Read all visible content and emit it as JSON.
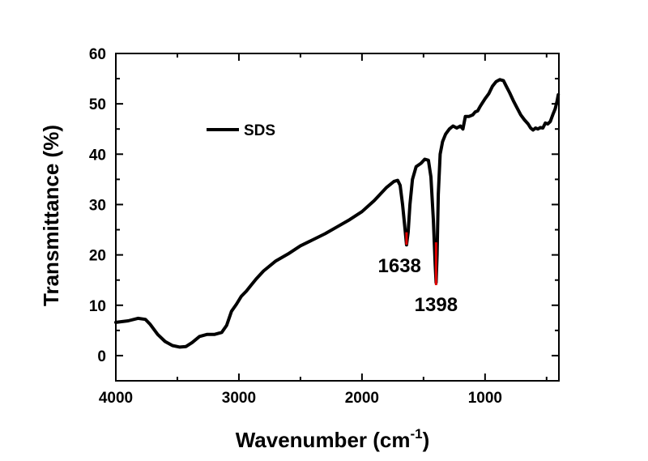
{
  "chart_data": {
    "type": "line",
    "xlabel": "Wavenumber (cm",
    "xlabel_sup": "-1",
    "xlabel_end": ")",
    "ylabel": "Transmittance (%)",
    "xlim": [
      4000,
      400
    ],
    "ylim": [
      -5,
      60
    ],
    "x_reversed": true,
    "xticks": [
      4000,
      3000,
      2000,
      1000
    ],
    "yticks": [
      0,
      10,
      20,
      30,
      40,
      50,
      60
    ],
    "legend_position": "top-left",
    "series": [
      {
        "name": "SDS",
        "color": "#000000",
        "points": [
          [
            4000,
            6.6
          ],
          [
            3900,
            6.9
          ],
          [
            3820,
            7.4
          ],
          [
            3760,
            7.2
          ],
          [
            3720,
            6.2
          ],
          [
            3660,
            4.2
          ],
          [
            3600,
            2.8
          ],
          [
            3540,
            2.0
          ],
          [
            3480,
            1.7
          ],
          [
            3430,
            1.8
          ],
          [
            3380,
            2.6
          ],
          [
            3320,
            3.8
          ],
          [
            3260,
            4.2
          ],
          [
            3200,
            4.2
          ],
          [
            3140,
            4.6
          ],
          [
            3100,
            6.0
          ],
          [
            3060,
            8.8
          ],
          [
            3020,
            10.2
          ],
          [
            2980,
            11.8
          ],
          [
            2940,
            12.8
          ],
          [
            2900,
            14.0
          ],
          [
            2860,
            15.2
          ],
          [
            2800,
            16.8
          ],
          [
            2700,
            18.8
          ],
          [
            2600,
            20.2
          ],
          [
            2500,
            21.8
          ],
          [
            2400,
            23.0
          ],
          [
            2300,
            24.2
          ],
          [
            2200,
            25.6
          ],
          [
            2100,
            27.0
          ],
          [
            2000,
            28.6
          ],
          [
            1900,
            30.8
          ],
          [
            1800,
            33.4
          ],
          [
            1740,
            34.6
          ],
          [
            1710,
            34.8
          ],
          [
            1690,
            33.8
          ],
          [
            1670,
            30.0
          ],
          [
            1650,
            25.0
          ],
          [
            1638,
            22.0
          ],
          [
            1625,
            24.5
          ],
          [
            1610,
            30.0
          ],
          [
            1590,
            35.0
          ],
          [
            1560,
            37.5
          ],
          [
            1520,
            38.2
          ],
          [
            1490,
            39.0
          ],
          [
            1460,
            38.8
          ],
          [
            1440,
            35.5
          ],
          [
            1420,
            27.0
          ],
          [
            1405,
            18.0
          ],
          [
            1398,
            14.5
          ],
          [
            1390,
            20.0
          ],
          [
            1380,
            32.0
          ],
          [
            1365,
            40.0
          ],
          [
            1345,
            42.5
          ],
          [
            1320,
            44.0
          ],
          [
            1290,
            45.0
          ],
          [
            1260,
            45.6
          ],
          [
            1230,
            45.2
          ],
          [
            1200,
            45.6
          ],
          [
            1180,
            45.0
          ],
          [
            1160,
            47.5
          ],
          [
            1130,
            47.5
          ],
          [
            1100,
            47.8
          ],
          [
            1080,
            48.4
          ],
          [
            1060,
            48.6
          ],
          [
            1040,
            49.5
          ],
          [
            1000,
            51.0
          ],
          [
            970,
            52.0
          ],
          [
            940,
            53.5
          ],
          [
            910,
            54.4
          ],
          [
            880,
            54.8
          ],
          [
            850,
            54.6
          ],
          [
            830,
            53.6
          ],
          [
            800,
            52.2
          ],
          [
            770,
            50.6
          ],
          [
            740,
            49.2
          ],
          [
            710,
            47.8
          ],
          [
            680,
            46.8
          ],
          [
            650,
            46.0
          ],
          [
            630,
            45.2
          ],
          [
            610,
            44.8
          ],
          [
            590,
            45.2
          ],
          [
            570,
            45.0
          ],
          [
            550,
            45.3
          ],
          [
            530,
            45.2
          ],
          [
            510,
            46.2
          ],
          [
            490,
            46.0
          ],
          [
            470,
            46.5
          ],
          [
            450,
            47.8
          ],
          [
            430,
            49.0
          ],
          [
            415,
            50.5
          ],
          [
            405,
            51.8
          ]
        ]
      }
    ],
    "annotations": [
      {
        "label": "1638",
        "x": 1638,
        "y_top": 24.5,
        "y_bottom": 22.0,
        "color": "#e00000"
      },
      {
        "label": "1398",
        "x": 1398,
        "y_top": 22.5,
        "y_bottom": 14.0,
        "color": "#e00000"
      }
    ]
  }
}
